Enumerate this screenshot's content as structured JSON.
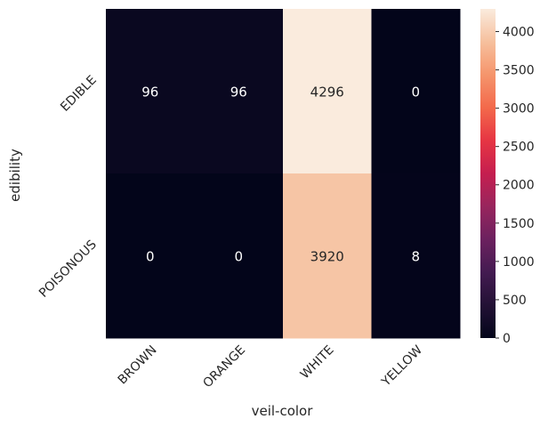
{
  "chart_data": {
    "type": "heatmap",
    "title": "",
    "xlabel": "veil-color",
    "ylabel": "edibility",
    "x_categories": [
      "BROWN",
      "ORANGE",
      "WHITE",
      "YELLOW"
    ],
    "y_categories": [
      "EDIBLE",
      "POISONOUS"
    ],
    "values": [
      [
        96,
        96,
        4296,
        0
      ],
      [
        0,
        0,
        3920,
        8
      ]
    ],
    "annotations": true,
    "colormap": "rocket",
    "color_range": [
      0,
      4296
    ],
    "colorbar": {
      "ticks": [
        0,
        500,
        1000,
        1500,
        2000,
        2500,
        3000,
        3500,
        4000
      ],
      "labels": [
        "0",
        "500",
        "1000",
        "1500",
        "2000",
        "2500",
        "3000",
        "3500",
        "4000"
      ]
    }
  }
}
